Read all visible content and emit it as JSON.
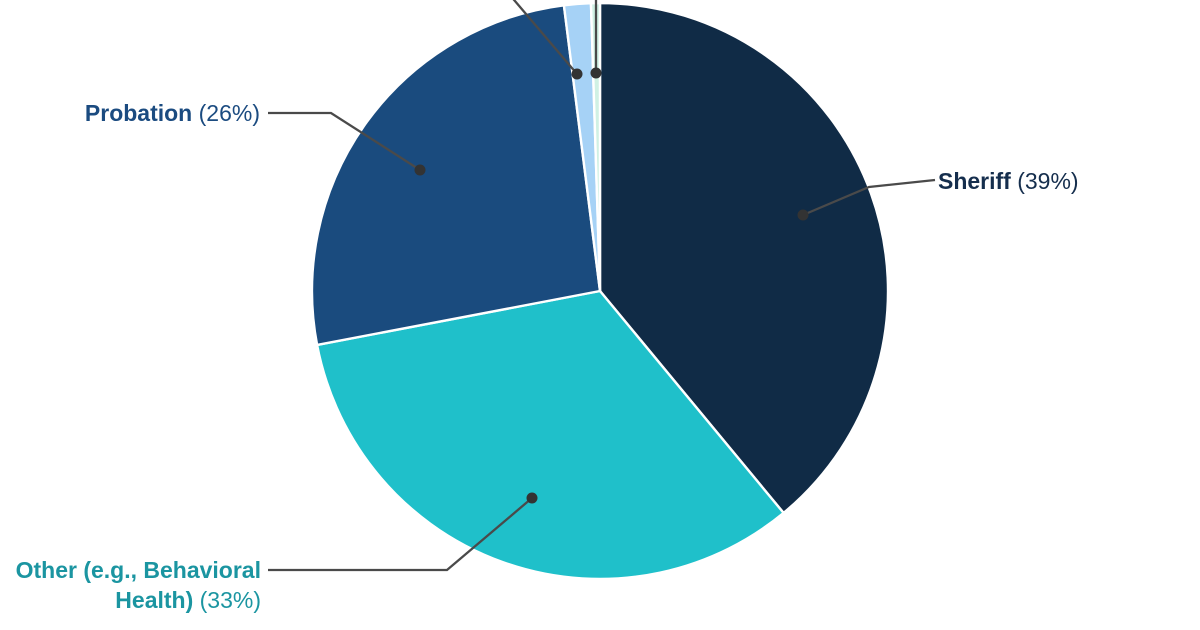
{
  "chart_data": {
    "type": "pie",
    "title": "",
    "unit": "%",
    "start_angle_deg": 0,
    "layout_hints": {
      "labels": "external callout lines with dot markers",
      "legend": "none",
      "top_small_slice_callouts_cropped_offscreen": true,
      "background": "#ffffff"
    },
    "slices": [
      {
        "label": "Sheriff",
        "value": 39,
        "pct_label": "(39%)",
        "color": "#102b46",
        "text_color": "#152e4d"
      },
      {
        "label": "Other (e.g., Behavioral Health)",
        "label_lines": [
          "Other (e.g., Behavioral",
          "Health)"
        ],
        "value": 33,
        "pct_label": "(33%)",
        "color": "#1fc0ca",
        "text_color": "#1b95a1"
      },
      {
        "label": "Probation",
        "value": 26,
        "pct_label": "(26%)",
        "color": "#1a4b7e",
        "text_color": "#1b4b80"
      },
      {
        "label": "",
        "value": 1.5,
        "pct_label": "",
        "color": "#a6d2f6",
        "text_color": "#4a4a4a"
      },
      {
        "label": "",
        "value": 0.5,
        "pct_label": "",
        "color": "#d0f1e4",
        "text_color": "#4a4a4a"
      }
    ],
    "callout_style": {
      "line_color": "#4a4a4a",
      "dot_color": "#333333"
    }
  }
}
